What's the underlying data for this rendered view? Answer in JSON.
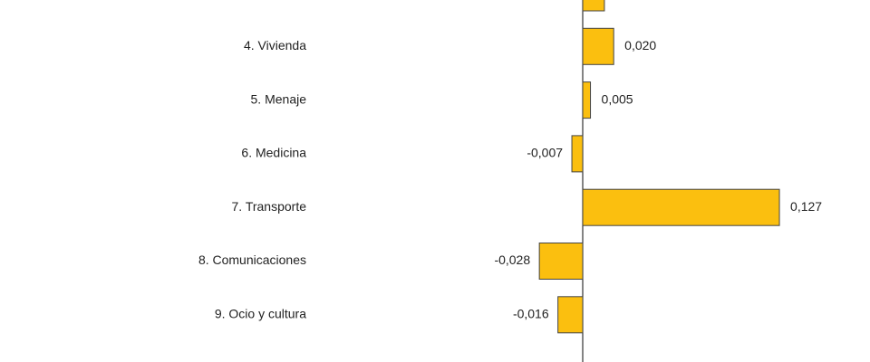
{
  "chart_data": {
    "type": "bar",
    "orientation": "horizontal",
    "categories": [
      null,
      "4. Vivienda",
      "5. Menaje",
      "6. Medicina",
      "7. Transporte",
      "8. Comunicaciones",
      "9. Ocio y cultura"
    ],
    "values": [
      0.014,
      0.02,
      0.005,
      -0.007,
      0.127,
      -0.028,
      -0.016
    ],
    "value_labels": [
      null,
      "0,020",
      "0,005",
      "-0,007",
      "0,127",
      "-0,028",
      "-0,016"
    ],
    "color": "#fbbf0f"
  }
}
